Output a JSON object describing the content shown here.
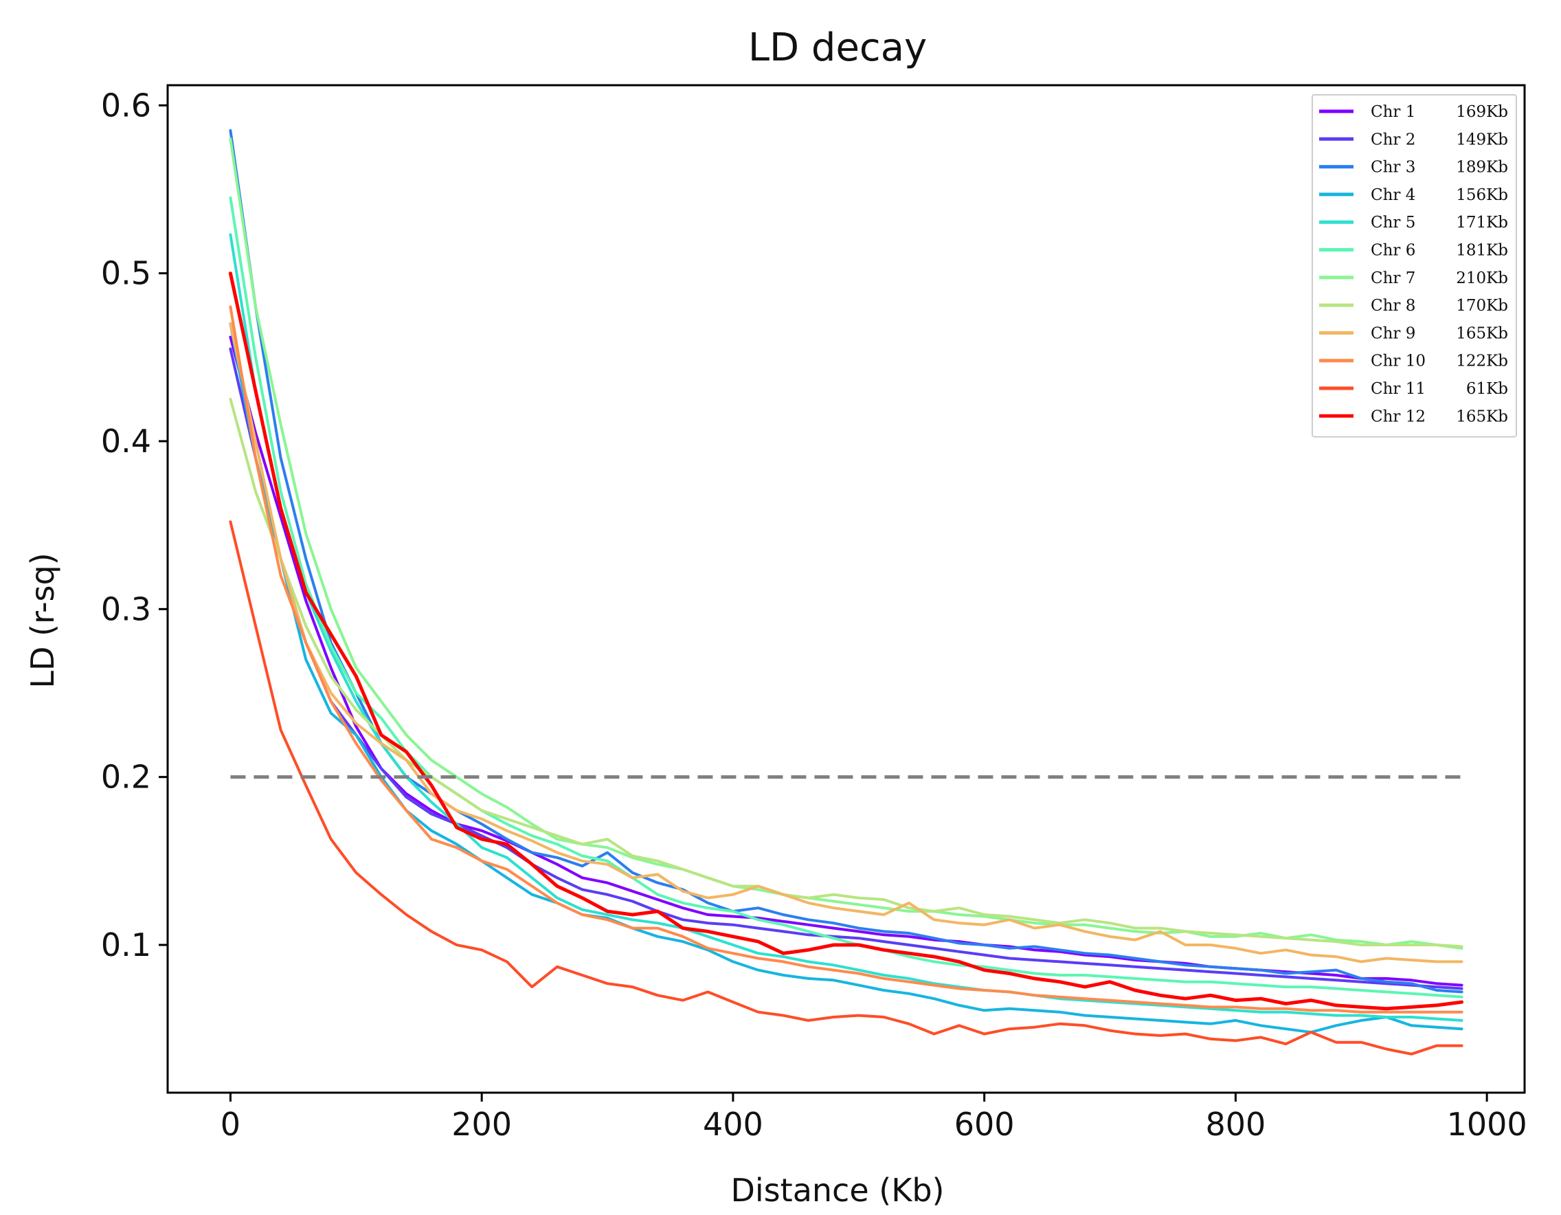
{
  "chart_data": {
    "type": "line",
    "title": "LD decay",
    "xlabel": "Distance (Kb)",
    "ylabel": "LD (r-sq)",
    "xlim": [
      -50,
      1030
    ],
    "ylim": [
      0.012,
      0.612
    ],
    "xticks": [
      0,
      200,
      400,
      600,
      800,
      1000
    ],
    "yticks": [
      0.1,
      0.2,
      0.3,
      0.4,
      0.5,
      0.6
    ],
    "xtick_labels": [
      "0",
      "200",
      "400",
      "600",
      "800",
      "1000"
    ],
    "ytick_labels": [
      "0.1",
      "0.2",
      "0.3",
      "0.4",
      "0.5",
      "0.6"
    ],
    "grid": false,
    "legend_position": "top-right",
    "threshold": {
      "y": 0.2,
      "x_range": [
        0,
        980
      ],
      "color": "#808080",
      "style": "dashed"
    },
    "x": [
      0,
      20,
      40,
      60,
      80,
      100,
      120,
      140,
      160,
      180,
      200,
      220,
      240,
      260,
      280,
      300,
      320,
      340,
      360,
      380,
      400,
      420,
      440,
      460,
      480,
      500,
      520,
      540,
      560,
      580,
      600,
      620,
      640,
      660,
      680,
      700,
      720,
      740,
      760,
      780,
      800,
      820,
      840,
      860,
      880,
      900,
      920,
      940,
      960,
      980
    ],
    "series": [
      {
        "name": "Chr 1",
        "decay": "169Kb",
        "color": "#8000ff",
        "values": [
          0.462,
          0.405,
          0.355,
          0.305,
          0.265,
          0.23,
          0.205,
          0.19,
          0.18,
          0.172,
          0.168,
          0.162,
          0.155,
          0.148,
          0.14,
          0.137,
          0.132,
          0.127,
          0.122,
          0.118,
          0.117,
          0.116,
          0.114,
          0.112,
          0.11,
          0.108,
          0.106,
          0.105,
          0.103,
          0.102,
          0.1,
          0.099,
          0.097,
          0.096,
          0.094,
          0.093,
          0.091,
          0.09,
          0.089,
          0.087,
          0.086,
          0.085,
          0.084,
          0.083,
          0.082,
          0.08,
          0.08,
          0.079,
          0.077,
          0.076
        ]
      },
      {
        "name": "Chr 2",
        "decay": "149Kb",
        "color": "#5a3df5",
        "values": [
          0.455,
          0.39,
          0.33,
          0.28,
          0.245,
          0.225,
          0.205,
          0.188,
          0.178,
          0.172,
          0.165,
          0.158,
          0.148,
          0.14,
          0.133,
          0.13,
          0.126,
          0.12,
          0.115,
          0.113,
          0.112,
          0.11,
          0.108,
          0.106,
          0.105,
          0.104,
          0.102,
          0.1,
          0.098,
          0.096,
          0.094,
          0.092,
          0.091,
          0.09,
          0.089,
          0.088,
          0.087,
          0.086,
          0.085,
          0.084,
          0.083,
          0.082,
          0.081,
          0.08,
          0.079,
          0.078,
          0.077,
          0.076,
          0.075,
          0.074
        ]
      },
      {
        "name": "Chr 3",
        "decay": "189Kb",
        "color": "#2c7ef0",
        "values": [
          0.585,
          0.48,
          0.39,
          0.33,
          0.28,
          0.25,
          0.22,
          0.2,
          0.19,
          0.18,
          0.172,
          0.163,
          0.155,
          0.152,
          0.147,
          0.155,
          0.143,
          0.137,
          0.133,
          0.125,
          0.12,
          0.122,
          0.118,
          0.115,
          0.113,
          0.11,
          0.108,
          0.107,
          0.104,
          0.101,
          0.1,
          0.098,
          0.099,
          0.097,
          0.095,
          0.094,
          0.092,
          0.09,
          0.088,
          0.087,
          0.086,
          0.085,
          0.083,
          0.084,
          0.085,
          0.08,
          0.078,
          0.077,
          0.073,
          0.072
        ]
      },
      {
        "name": "Chr 4",
        "decay": "156Kb",
        "color": "#17b5e0",
        "values": [
          0.47,
          0.39,
          0.33,
          0.27,
          0.238,
          0.225,
          0.2,
          0.18,
          0.168,
          0.16,
          0.15,
          0.14,
          0.13,
          0.125,
          0.118,
          0.116,
          0.11,
          0.105,
          0.102,
          0.097,
          0.09,
          0.085,
          0.082,
          0.08,
          0.079,
          0.076,
          0.073,
          0.071,
          0.068,
          0.064,
          0.061,
          0.062,
          0.061,
          0.06,
          0.058,
          0.057,
          0.056,
          0.055,
          0.054,
          0.053,
          0.055,
          0.052,
          0.05,
          0.048,
          0.052,
          0.055,
          0.057,
          0.052,
          0.051,
          0.05
        ]
      },
      {
        "name": "Chr 5",
        "decay": "171Kb",
        "color": "#2ee0cf",
        "values": [
          0.523,
          0.43,
          0.36,
          0.31,
          0.275,
          0.245,
          0.22,
          0.2,
          0.185,
          0.172,
          0.158,
          0.152,
          0.14,
          0.128,
          0.121,
          0.118,
          0.115,
          0.113,
          0.11,
          0.105,
          0.1,
          0.095,
          0.093,
          0.09,
          0.088,
          0.085,
          0.082,
          0.08,
          0.077,
          0.075,
          0.073,
          0.072,
          0.07,
          0.068,
          0.067,
          0.066,
          0.065,
          0.064,
          0.063,
          0.062,
          0.061,
          0.06,
          0.06,
          0.059,
          0.058,
          0.058,
          0.057,
          0.057,
          0.056,
          0.055
        ]
      },
      {
        "name": "Chr 6",
        "decay": "181Kb",
        "color": "#5cf5b5",
        "values": [
          0.545,
          0.45,
          0.37,
          0.315,
          0.278,
          0.25,
          0.235,
          0.215,
          0.2,
          0.19,
          0.18,
          0.172,
          0.165,
          0.16,
          0.153,
          0.15,
          0.14,
          0.13,
          0.125,
          0.122,
          0.12,
          0.115,
          0.112,
          0.108,
          0.104,
          0.1,
          0.097,
          0.093,
          0.09,
          0.088,
          0.087,
          0.085,
          0.083,
          0.082,
          0.082,
          0.081,
          0.08,
          0.079,
          0.078,
          0.078,
          0.077,
          0.076,
          0.075,
          0.075,
          0.074,
          0.073,
          0.072,
          0.071,
          0.07,
          0.069
        ]
      },
      {
        "name": "Chr 7",
        "decay": "210Kb",
        "color": "#8af593",
        "values": [
          0.58,
          0.48,
          0.41,
          0.345,
          0.3,
          0.265,
          0.245,
          0.225,
          0.21,
          0.2,
          0.19,
          0.182,
          0.172,
          0.163,
          0.16,
          0.158,
          0.152,
          0.148,
          0.145,
          0.14,
          0.135,
          0.133,
          0.13,
          0.128,
          0.126,
          0.124,
          0.122,
          0.12,
          0.12,
          0.118,
          0.117,
          0.115,
          0.113,
          0.112,
          0.112,
          0.11,
          0.108,
          0.107,
          0.108,
          0.105,
          0.105,
          0.107,
          0.104,
          0.106,
          0.103,
          0.102,
          0.1,
          0.102,
          0.1,
          0.098
        ]
      },
      {
        "name": "Chr 8",
        "decay": "170Kb",
        "color": "#b7e581",
        "values": [
          0.425,
          0.37,
          0.33,
          0.29,
          0.26,
          0.24,
          0.225,
          0.21,
          0.2,
          0.19,
          0.18,
          0.175,
          0.17,
          0.165,
          0.16,
          0.163,
          0.153,
          0.15,
          0.145,
          0.14,
          0.135,
          0.135,
          0.13,
          0.128,
          0.13,
          0.128,
          0.127,
          0.122,
          0.12,
          0.122,
          0.118,
          0.117,
          0.115,
          0.113,
          0.115,
          0.113,
          0.11,
          0.11,
          0.108,
          0.107,
          0.106,
          0.105,
          0.104,
          0.103,
          0.102,
          0.1,
          0.1,
          0.1,
          0.1,
          0.099
        ]
      },
      {
        "name": "Chr 9",
        "decay": "165Kb",
        "color": "#f2b662",
        "values": [
          0.47,
          0.4,
          0.33,
          0.28,
          0.25,
          0.232,
          0.22,
          0.21,
          0.19,
          0.18,
          0.175,
          0.168,
          0.162,
          0.155,
          0.15,
          0.148,
          0.14,
          0.142,
          0.132,
          0.128,
          0.13,
          0.135,
          0.13,
          0.125,
          0.122,
          0.12,
          0.118,
          0.125,
          0.115,
          0.113,
          0.112,
          0.115,
          0.11,
          0.112,
          0.108,
          0.105,
          0.103,
          0.108,
          0.1,
          0.1,
          0.098,
          0.095,
          0.097,
          0.094,
          0.093,
          0.09,
          0.092,
          0.091,
          0.09,
          0.09
        ]
      },
      {
        "name": "Chr 10",
        "decay": "122Kb",
        "color": "#ff8a4d",
        "values": [
          0.48,
          0.39,
          0.32,
          0.28,
          0.245,
          0.22,
          0.198,
          0.18,
          0.163,
          0.158,
          0.15,
          0.145,
          0.135,
          0.125,
          0.118,
          0.115,
          0.11,
          0.11,
          0.105,
          0.098,
          0.095,
          0.092,
          0.09,
          0.087,
          0.085,
          0.083,
          0.08,
          0.078,
          0.076,
          0.074,
          0.073,
          0.072,
          0.07,
          0.069,
          0.068,
          0.067,
          0.066,
          0.065,
          0.064,
          0.063,
          0.063,
          0.062,
          0.062,
          0.061,
          0.061,
          0.06,
          0.06,
          0.06,
          0.06,
          0.06
        ]
      },
      {
        "name": "Chr 11",
        "decay": "61Kb",
        "color": "#ff4d28",
        "values": [
          0.352,
          0.29,
          0.228,
          0.195,
          0.163,
          0.143,
          0.13,
          0.118,
          0.108,
          0.1,
          0.097,
          0.09,
          0.075,
          0.087,
          0.082,
          0.077,
          0.075,
          0.07,
          0.067,
          0.072,
          0.066,
          0.06,
          0.058,
          0.055,
          0.057,
          0.058,
          0.057,
          0.053,
          0.047,
          0.052,
          0.047,
          0.05,
          0.051,
          0.053,
          0.052,
          0.049,
          0.047,
          0.046,
          0.047,
          0.044,
          0.043,
          0.045,
          0.041,
          0.048,
          0.042,
          0.042,
          0.038,
          0.035,
          0.04,
          0.04
        ]
      },
      {
        "name": "Chr 12",
        "decay": "165Kb",
        "color": "#ff0000",
        "values": [
          0.5,
          0.43,
          0.36,
          0.31,
          0.285,
          0.26,
          0.225,
          0.215,
          0.195,
          0.17,
          0.163,
          0.16,
          0.148,
          0.135,
          0.128,
          0.12,
          0.118,
          0.12,
          0.11,
          0.108,
          0.105,
          0.102,
          0.095,
          0.097,
          0.1,
          0.1,
          0.097,
          0.095,
          0.093,
          0.09,
          0.085,
          0.083,
          0.08,
          0.078,
          0.075,
          0.078,
          0.073,
          0.07,
          0.068,
          0.07,
          0.067,
          0.068,
          0.065,
          0.067,
          0.064,
          0.063,
          0.062,
          0.063,
          0.064,
          0.066
        ]
      }
    ]
  }
}
